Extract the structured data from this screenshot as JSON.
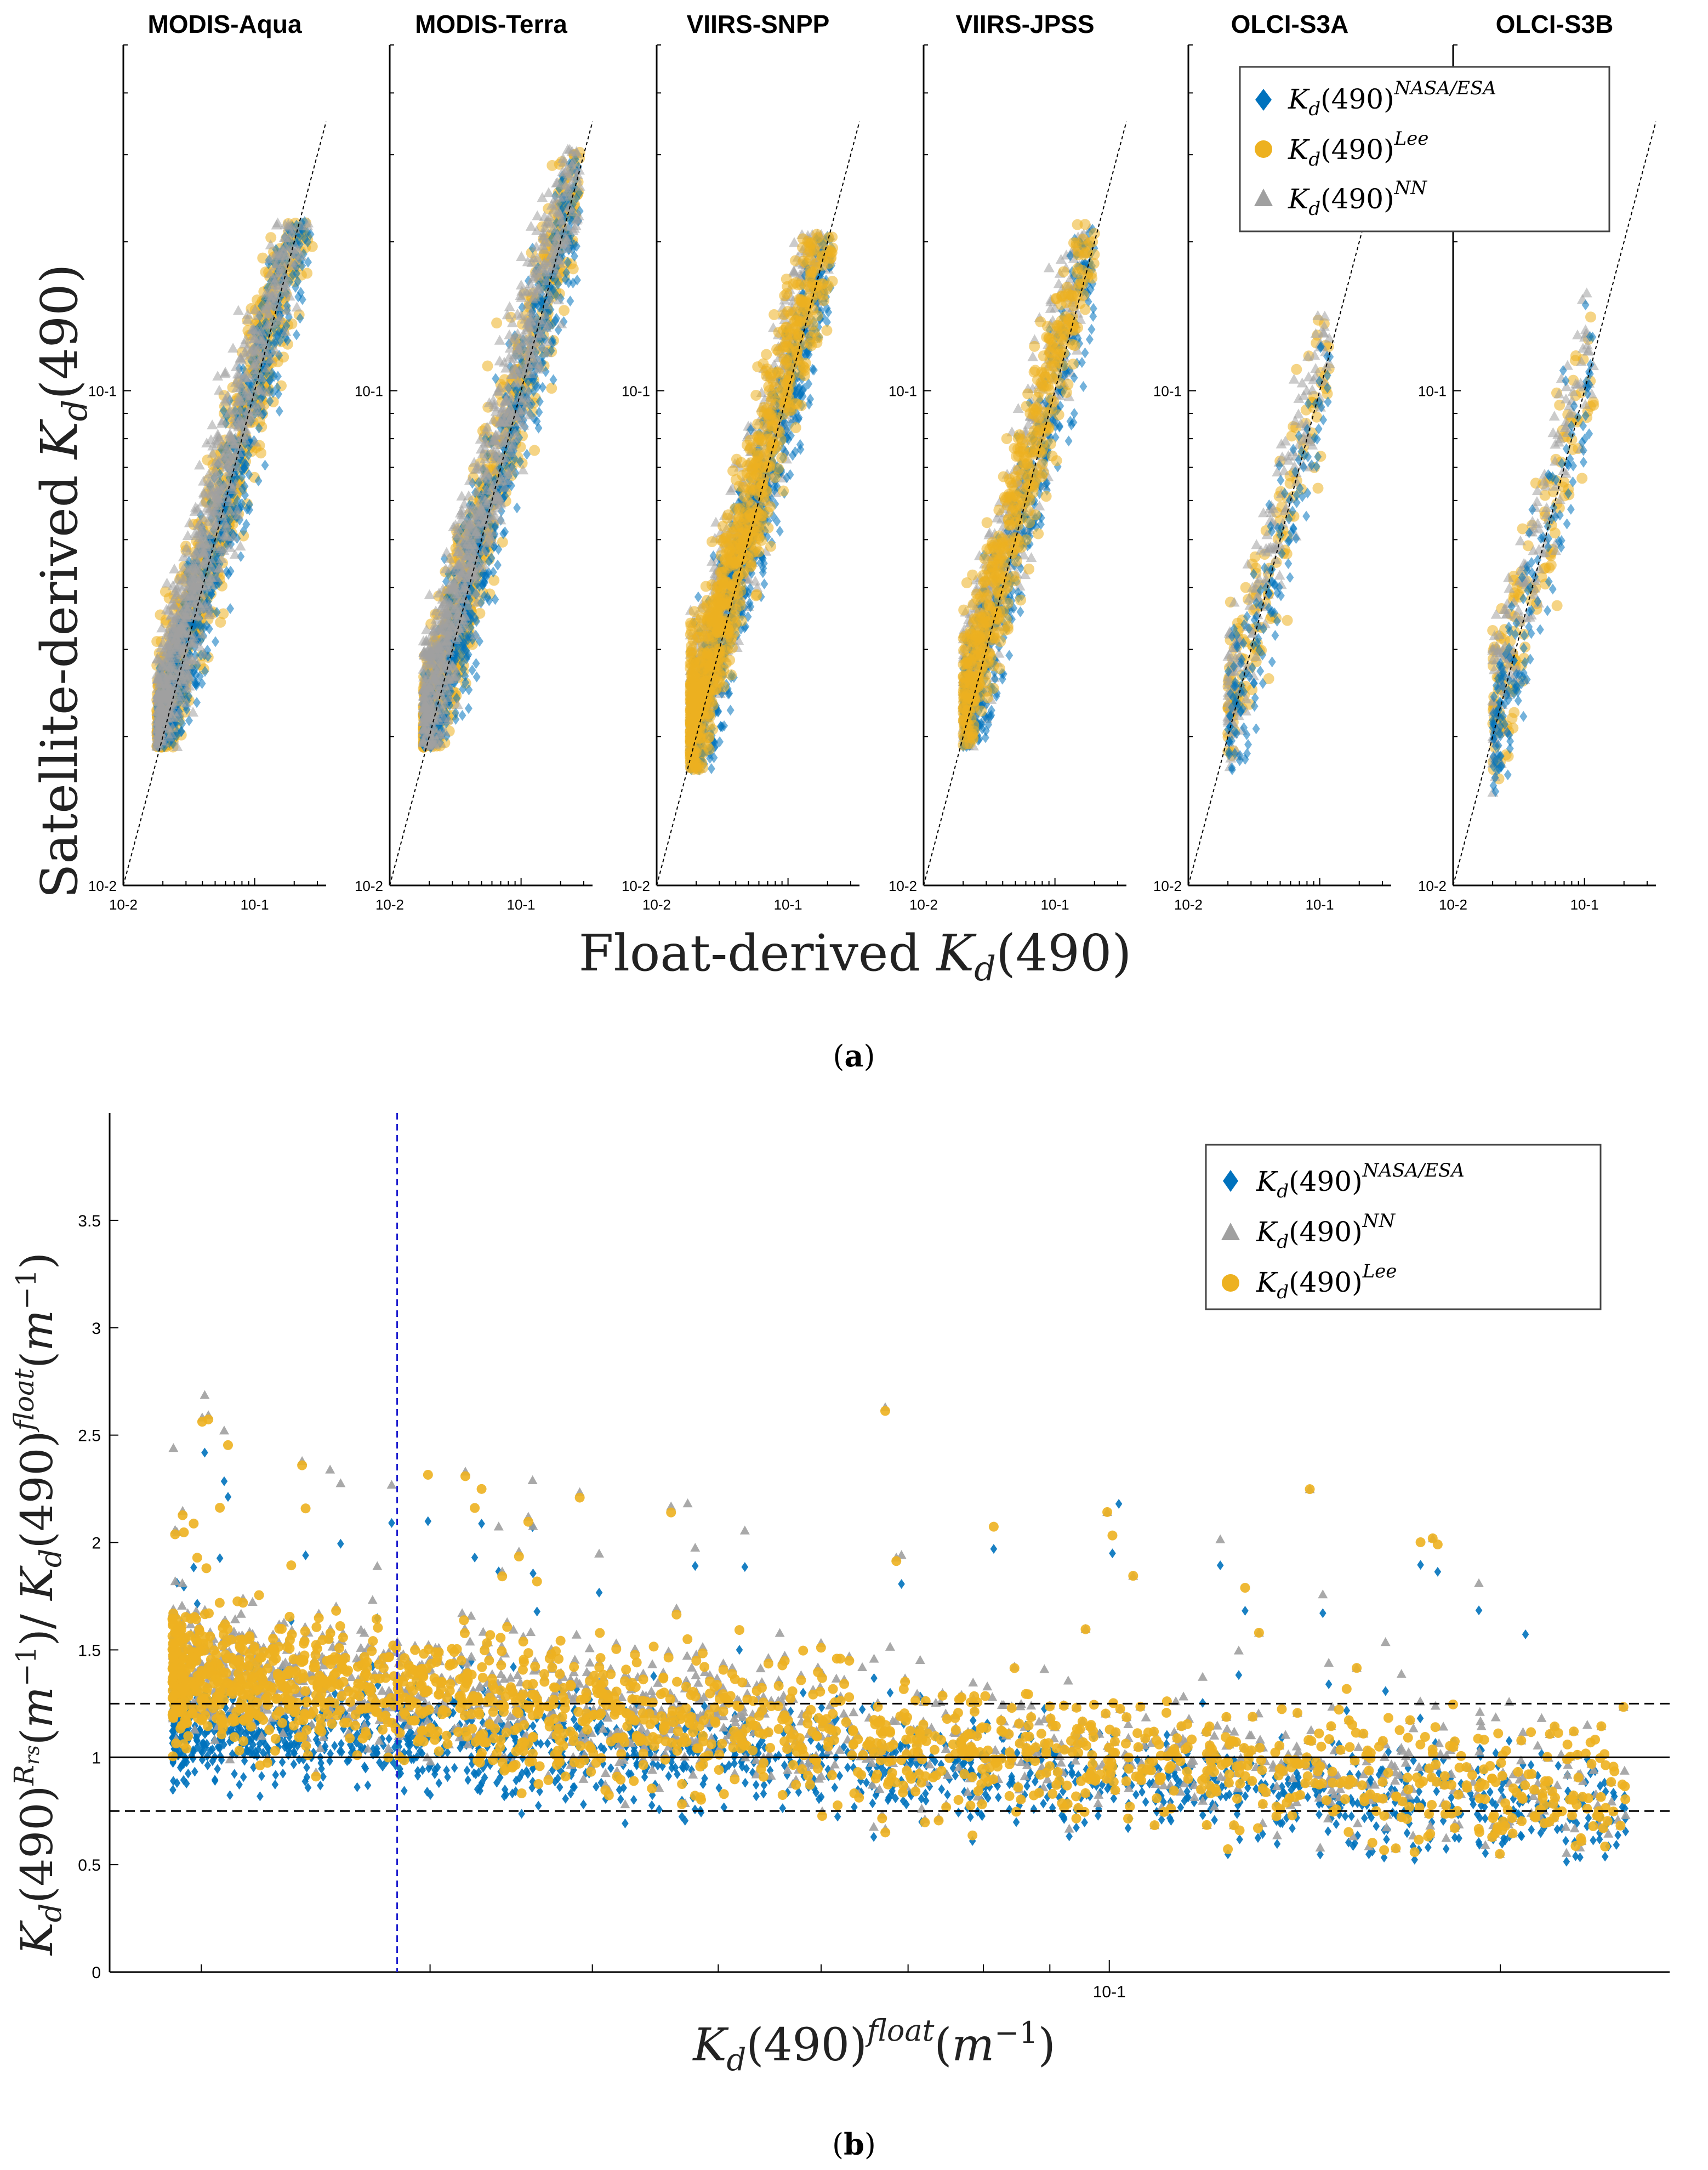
{
  "figure": {
    "caption_a": "(a)",
    "caption_b": "(b)",
    "caption_a_letter": "a",
    "caption_b_letter": "b"
  },
  "colors": {
    "nasa_esa": "#0072BD",
    "lee": "#EDB120",
    "nn": "#A0A0A0",
    "vline": "#1f1fcf"
  },
  "chart_data": [
    {
      "type": "scatter",
      "name_panel": "a",
      "scale": "log-log",
      "xlabel": "Float-derived K_d(490)",
      "ylabel": "Satellite-derived K_d(490)",
      "xlim": [
        0.01,
        0.35
      ],
      "ylim": [
        0.01,
        0.5
      ],
      "x_tick_labels": [
        "10^-2",
        "10^-1"
      ],
      "y_tick_labels": [
        "10^-2",
        "10^-1"
      ],
      "one_to_one_line": true,
      "legend": [
        "K_d(490)^{NASA/ESA}",
        "K_d(490)^{Lee}",
        "K_d(490)^{NN}"
      ],
      "legend_placement": "top-right",
      "panels": [
        {
          "title": "MODIS-Aqua",
          "x_range": [
            0.018,
            0.28
          ],
          "y_range": [
            0.02,
            0.2
          ],
          "density": "high"
        },
        {
          "title": "MODIS-Terra",
          "x_range": [
            0.018,
            0.28
          ],
          "y_range": [
            0.02,
            0.28
          ],
          "density": "high"
        },
        {
          "title": "VIIRS-SNPP",
          "x_range": [
            0.018,
            0.22
          ],
          "y_range": [
            0.018,
            0.19
          ],
          "density": "high"
        },
        {
          "title": "VIIRS-JPSS",
          "x_range": [
            0.02,
            0.2
          ],
          "y_range": [
            0.02,
            0.2
          ],
          "density": "medium"
        },
        {
          "title": "OLCI-S3A",
          "x_range": [
            0.02,
            0.12
          ],
          "y_range": [
            0.018,
            0.15
          ],
          "density": "low"
        },
        {
          "title": "OLCI-S3B",
          "x_range": [
            0.02,
            0.12
          ],
          "y_range": [
            0.015,
            0.15
          ],
          "density": "low"
        }
      ]
    },
    {
      "type": "scatter",
      "name_panel": "b",
      "xscale": "log",
      "xlabel": "K_d(490)^{float}(m^{-1})",
      "ylabel": "K_d(490)^{Rrs}(m^{-1}) / K_d(490)^{float}(m^{-1})",
      "xlim": [
        0.017,
        0.27
      ],
      "ylim": [
        0,
        4.0
      ],
      "x_tick_labels": [
        "10^-1"
      ],
      "y_ticks": [
        0,
        0.5,
        1,
        1.5,
        2,
        2.5,
        3,
        3.5
      ],
      "y_tick_labels": [
        "0",
        "0.5",
        "1",
        "1.5",
        "2",
        "2.5",
        "3",
        "3.5"
      ],
      "hlines": [
        {
          "y": 1.0,
          "style": "solid"
        },
        {
          "y": 1.25,
          "style": "dashed"
        },
        {
          "y": 0.75,
          "style": "dashed"
        }
      ],
      "vline": {
        "x": 0.0283,
        "style": "dashed",
        "color": "blue"
      },
      "legend": [
        "K_d(490)^{NASA/ESA}",
        "K_d(490)^{NN}",
        "K_d(490)^{Lee}"
      ],
      "legend_placement": "top-right",
      "series": [
        {
          "name": "K_d(490)^{NASA/ESA}",
          "trend_x": [
            0.02,
            0.03,
            0.05,
            0.1,
            0.2
          ],
          "trend_y": [
            1.15,
            1.08,
            1.0,
            0.9,
            0.75
          ]
        },
        {
          "name": "K_d(490)^{NN}",
          "trend_x": [
            0.02,
            0.03,
            0.05,
            0.1,
            0.2
          ],
          "trend_y": [
            1.4,
            1.3,
            1.15,
            1.0,
            0.85
          ]
        },
        {
          "name": "K_d(490)^{Lee}",
          "trend_x": [
            0.02,
            0.03,
            0.05,
            0.1,
            0.2
          ],
          "trend_y": [
            1.38,
            1.28,
            1.12,
            1.0,
            0.85
          ]
        }
      ]
    }
  ]
}
